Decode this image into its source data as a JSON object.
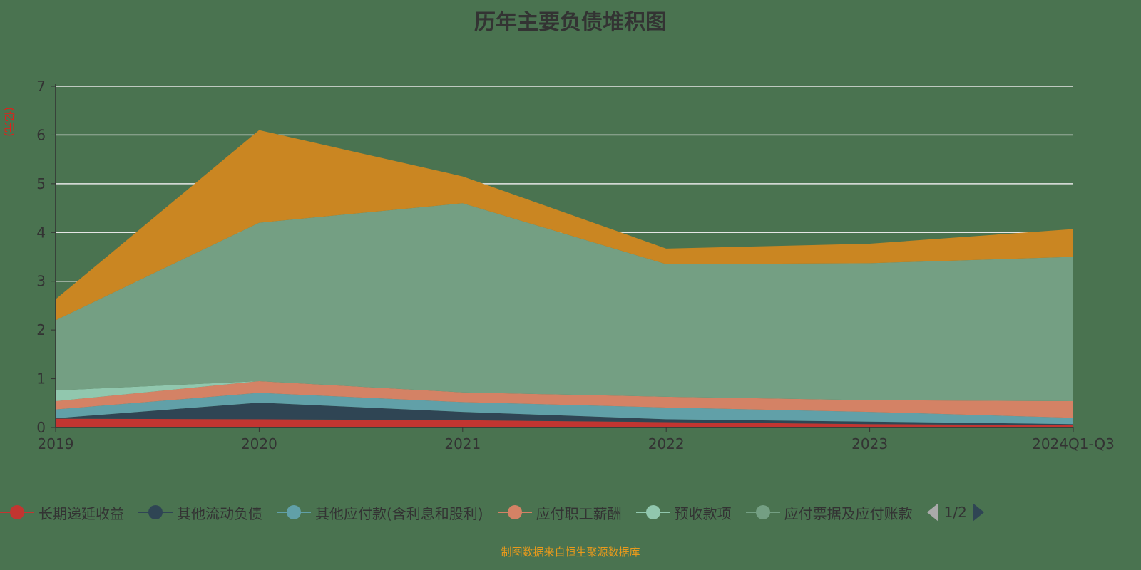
{
  "title": "历年主要负债堆积图",
  "footer": "制图数据来自恒生聚源数据库",
  "legend_page": "1/2",
  "chart_data": {
    "type": "area",
    "stacked": true,
    "title": "历年主要负债堆积图",
    "ylabel": "(亿元)",
    "ylim": [
      0,
      7
    ],
    "yticks": [
      "0",
      "1",
      "2",
      "3",
      "4",
      "5",
      "6",
      "7"
    ],
    "grid": true,
    "legend_placement": "bottom",
    "categories": [
      "2019",
      "2020",
      "2021",
      "2022",
      "2023",
      "2024Q1-Q3"
    ],
    "series": [
      {
        "name": "长期递延收益",
        "color": "#c23531",
        "values": [
          0.18,
          0.17,
          0.15,
          0.11,
          0.07,
          0.05
        ]
      },
      {
        "name": "其他流动负债",
        "color": "#2f4554",
        "values": [
          0.01,
          0.34,
          0.17,
          0.06,
          0.05,
          0.02
        ]
      },
      {
        "name": "其他应付款(含利息和股利)",
        "color": "#61a0a8",
        "values": [
          0.18,
          0.2,
          0.2,
          0.24,
          0.2,
          0.13
        ]
      },
      {
        "name": "应付职工薪酬",
        "color": "#d48265",
        "values": [
          0.17,
          0.24,
          0.2,
          0.22,
          0.24,
          0.34
        ]
      },
      {
        "name": "预收款项",
        "color": "#91c7ae",
        "values": [
          0.22,
          0.0,
          0.0,
          0.0,
          0.0,
          0.0
        ]
      },
      {
        "name": "应付票据及应付账款",
        "color": "#749f83",
        "values": [
          1.44,
          3.25,
          3.88,
          2.72,
          2.81,
          2.96
        ]
      },
      {
        "color": "#ca8622",
        "values": [
          0.43,
          1.9,
          0.55,
          0.32,
          0.4,
          0.57
        ]
      }
    ]
  }
}
